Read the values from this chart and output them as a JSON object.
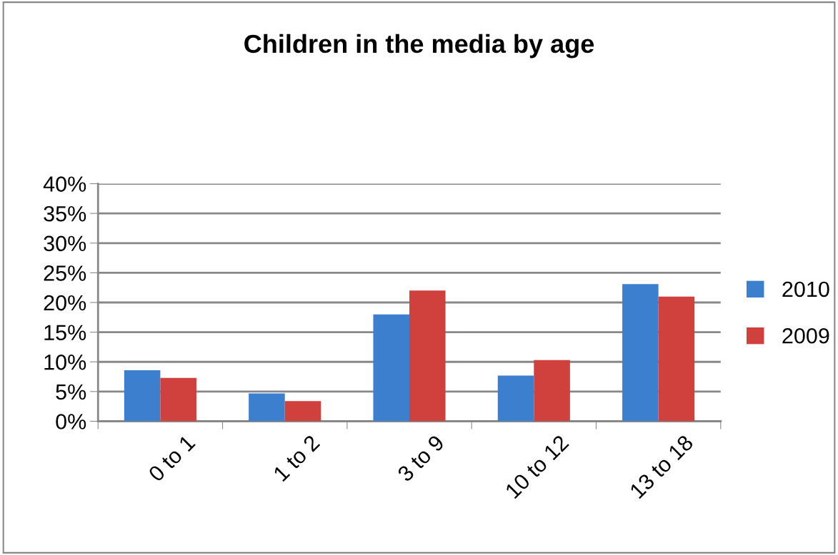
{
  "chart_data": {
    "type": "bar",
    "title": "Children in the media by age",
    "categories": [
      "0 to 1",
      "1 to 2",
      "3 to 9",
      "10 to 12",
      "13 to 18"
    ],
    "series": [
      {
        "name": "2010",
        "color": "#3d7fcf",
        "values": [
          8.6,
          4.7,
          18.0,
          7.7,
          23.1
        ]
      },
      {
        "name": "2009",
        "color": "#d0403d",
        "values": [
          7.3,
          3.4,
          22.0,
          10.3,
          21.0
        ]
      }
    ],
    "ylim": [
      0,
      40
    ],
    "yticks": [
      {
        "value": 0,
        "label": "0%"
      },
      {
        "value": 5,
        "label": "5%"
      },
      {
        "value": 10,
        "label": "10%"
      },
      {
        "value": 15,
        "label": "15%"
      },
      {
        "value": 20,
        "label": "20%"
      },
      {
        "value": 25,
        "label": "25%"
      },
      {
        "value": 30,
        "label": "30%"
      },
      {
        "value": 35,
        "label": "35%"
      },
      {
        "value": 40,
        "label": "40%"
      }
    ],
    "grid": "y",
    "legend": "right"
  }
}
